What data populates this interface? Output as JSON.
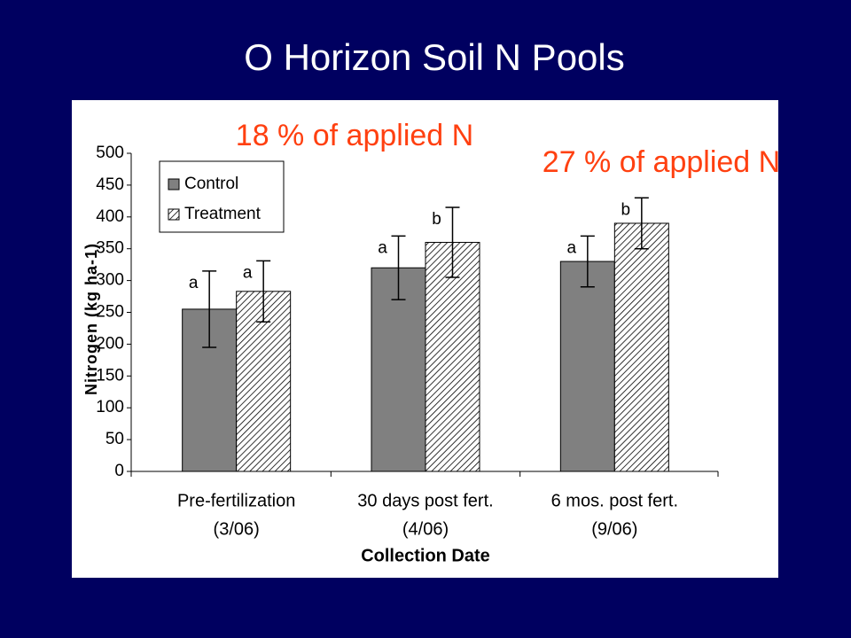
{
  "chart_data": {
    "type": "bar",
    "title": "O Horizon Soil N Pools",
    "annotations": [
      "18 % of applied N",
      "27 % of applied N"
    ],
    "x_label": "Collection Date",
    "y_label": "Nitrogen (kg ha-1)",
    "categories": [
      [
        "Pre-fertilization",
        "(3/06)"
      ],
      [
        "30 days post fert.",
        "(4/06)"
      ],
      [
        "6 mos. post fert.",
        "(9/06)"
      ]
    ],
    "series": [
      {
        "name": "Control",
        "color": "#808080",
        "values": [
          255,
          320,
          330
        ],
        "errors": [
          60,
          50,
          40
        ],
        "letters": [
          "a",
          "a",
          "a"
        ]
      },
      {
        "name": "Treatment",
        "color": "#ffffff",
        "pattern": "hatch",
        "values": [
          283,
          360,
          390
        ],
        "errors": [
          48,
          55,
          40
        ],
        "letters": [
          "a",
          "b",
          "b"
        ]
      }
    ],
    "ylim": [
      0,
      500
    ],
    "yticks": [
      0,
      50,
      100,
      150,
      200,
      250,
      300,
      350,
      400,
      450,
      500
    ],
    "grid": false
  }
}
